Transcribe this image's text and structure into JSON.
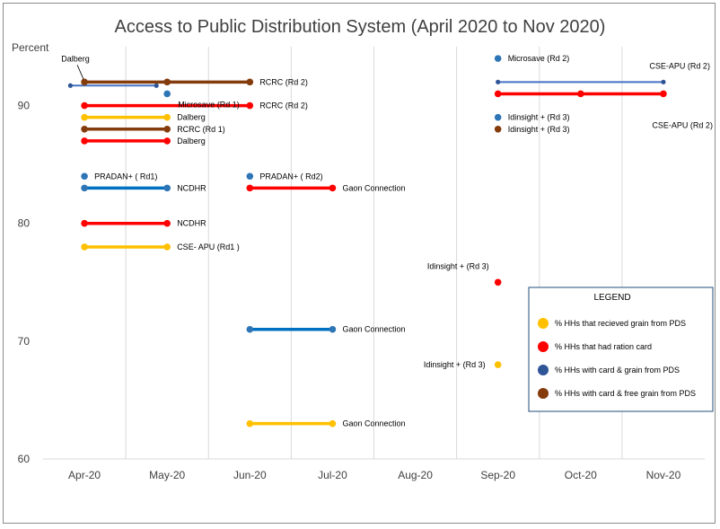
{
  "chart_data": {
    "type": "line",
    "title": "Access to Public Distribution System (April 2020 to Nov 2020)",
    "ylabel": "Percent",
    "xlabel": "",
    "categories": [
      "Apr-20",
      "May-20",
      "Jun-20",
      "Jul-20",
      "Aug-20",
      "Sep-20",
      "Oct-20",
      "Nov-20"
    ],
    "ylim": [
      60,
      95
    ],
    "yticks": [
      60,
      70,
      80,
      90
    ],
    "grid": "vertical category separators",
    "colors": {
      "grain": "#ffc000",
      "card": "#ff0000",
      "card_grain_line": "#0070c0",
      "card_grain_point": "#2e5a9c",
      "free_grain": "#843c0c",
      "cse_line": "#4472c4"
    },
    "series": [
      {
        "name": "% HHs that recieved grain from PDS",
        "color_key": "grain",
        "segments": [
          {
            "x": [
              0,
              1
            ],
            "y": [
              89,
              89
            ],
            "label": "Dalberg",
            "label_side": "right"
          },
          {
            "x": [
              0,
              1
            ],
            "y": [
              78,
              78
            ],
            "label": "CSE- APU (Rd1 )",
            "label_side": "right"
          },
          {
            "x": [
              2,
              3
            ],
            "y": [
              63,
              63
            ],
            "label": "Gaon Connection",
            "label_side": "right"
          },
          {
            "x": [
              5
            ],
            "y": [
              68
            ],
            "label": "Idinsight + (Rd 3)",
            "label_side": "left"
          }
        ]
      },
      {
        "name": "% HHs that had ration card",
        "color_key": "card",
        "segments": [
          {
            "x": [
              0,
              1
            ],
            "y": [
              87,
              87
            ],
            "label": "Dalberg",
            "label_side": "right"
          },
          {
            "x": [
              0,
              1
            ],
            "y": [
              80,
              80
            ],
            "label": "NCDHR",
            "label_side": "right"
          },
          {
            "x": [
              0,
              2
            ],
            "y": [
              90,
              90
            ],
            "label": "RCRC (Rd 2)",
            "label_side": "right"
          },
          {
            "x": [
              2,
              3
            ],
            "y": [
              83,
              83
            ],
            "label": "Gaon Connection",
            "label_side": "right"
          },
          {
            "x": [
              5
            ],
            "y": [
              75
            ],
            "label": "Idinsight + (Rd 3)",
            "label_side": "above"
          },
          {
            "x": [
              5,
              6,
              7
            ],
            "y": [
              91,
              91,
              91
            ],
            "label": "CSE-APU (Rd 2)",
            "label_side": "below-right"
          }
        ]
      },
      {
        "name": "% HHs with card & grain from PDS",
        "color_key": "card_grain_line",
        "segments": [
          {
            "x": [
              0
            ],
            "y": [
              84
            ],
            "label": "PRADAN+ ( Rd1)",
            "label_side": "right"
          },
          {
            "x": [
              0,
              1
            ],
            "y": [
              83,
              83
            ],
            "label": "NCDHR",
            "label_side": "right"
          },
          {
            "x": [
              1
            ],
            "y": [
              91
            ],
            "label": "Microsave (Rd 1)",
            "label_side": "below-right"
          },
          {
            "x": [
              2
            ],
            "y": [
              84
            ],
            "label": "PRADAN+ ( Rd2)",
            "label_side": "right"
          },
          {
            "x": [
              2,
              3
            ],
            "y": [
              71,
              71
            ],
            "label": "Gaon Connection",
            "label_side": "right"
          },
          {
            "x": [
              5
            ],
            "y": [
              94
            ],
            "label": "Microsave (Rd 2)",
            "label_side": "right"
          },
          {
            "x": [
              5
            ],
            "y": [
              89
            ],
            "label": "Idinsight + (Rd 3)",
            "label_side": "right"
          },
          {
            "x": [
              -0.17,
              0.87
            ],
            "y": [
              91.7,
              91.7
            ],
            "label": "",
            "label_side": "none",
            "thin": true
          },
          {
            "x": [
              5,
              7
            ],
            "y": [
              92,
              92
            ],
            "label": "CSE-APU (Rd 2)",
            "label_side": "above-right",
            "thin": true
          }
        ]
      },
      {
        "name": "% HHs with card & free grain from PDS",
        "color_key": "free_grain",
        "segments": [
          {
            "x": [
              0,
              1,
              2
            ],
            "y": [
              92,
              92,
              92
            ],
            "label": "RCRC (Rd 2)",
            "label_side": "right"
          },
          {
            "x": [
              0,
              1
            ],
            "y": [
              88,
              88
            ],
            "label": "RCRC (Rd 1)",
            "label_side": "right"
          },
          {
            "x": [
              5
            ],
            "y": [
              88
            ],
            "label": "Idinsight + (Rd 3)",
            "label_side": "right"
          }
        ]
      }
    ],
    "annotations": [
      {
        "text": "Dalberg",
        "x": 0,
        "y": 92,
        "position": "above-left",
        "leader": true
      }
    ],
    "legend": {
      "title": "LEGEND",
      "placement": "bottom-right",
      "items": [
        {
          "label": "% HHs that recieved grain from PDS",
          "color": "#ffc000"
        },
        {
          "label": "%  HHs that had ration card",
          "color": "#ff0000"
        },
        {
          "label": "% HHs with card & grain from PDS",
          "color": "#2f5597"
        },
        {
          "label": "% HHs with card & free grain from PDS",
          "color": "#843c0c"
        }
      ]
    }
  }
}
